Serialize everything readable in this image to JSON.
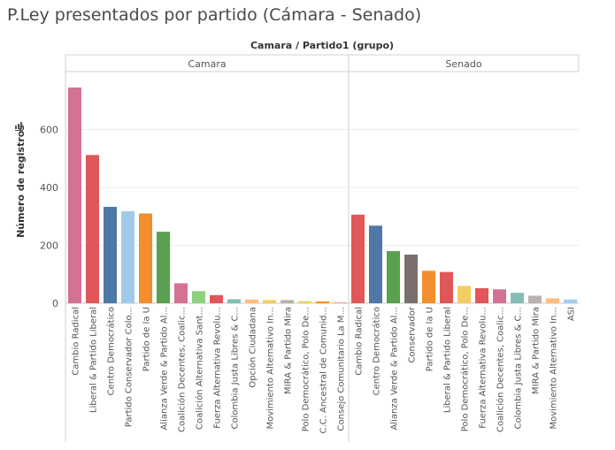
{
  "title": "P.Ley  presentados por partido (Cámara - Senado)",
  "chart_data": {
    "type": "bar",
    "column_header": "Camara / Partido1 (grupo)",
    "ylabel": "Número de registros",
    "ylim": [
      0,
      800
    ],
    "yticks": [
      0,
      200,
      400,
      600
    ],
    "grid": true,
    "panels": [
      {
        "name": "Camara",
        "categories": [
          "Cambio Radical",
          "Liberal & Partido Liberal",
          "Centro Democrático",
          "Partido Conservador Colo...",
          "Partido de la U",
          "Alianza Verde & Partido Al...",
          "Coalición Decentes, Coalic...",
          "Coalición Alternativa Sant...",
          "Fuerza Alternativa Revolu...",
          "Colombia Justa Libres & C...",
          "Opción Ciudadana",
          "Movimiento Alternativo In...",
          "MIRA & Partido Mira",
          "Polo Democrático, Polo De...",
          "C.C. Ancestral de Comunid...",
          "Consejo Comunitario La M..."
        ],
        "values": [
          745,
          512,
          333,
          318,
          310,
          247,
          69,
          42,
          28,
          14,
          13,
          11,
          11,
          7,
          6,
          1
        ],
        "colors": [
          "#D37295",
          "#E15759",
          "#4E79A7",
          "#A0CBE8",
          "#F28E2B",
          "#59A14F",
          "#D37295",
          "#8CD17D",
          "#E15759",
          "#86BCB6",
          "#FFBE7D",
          "#F1CE63",
          "#BAB0AC",
          "#F1CE63",
          "#F28E2B",
          "#FF9D9A"
        ]
      },
      {
        "name": "Senado",
        "categories": [
          "Cambio Radical",
          "Centro Democrático",
          "Alianza Verde & Partido Al...",
          "Conservador",
          "Partido de la U",
          "Liberal & Partido Liberal",
          "Polo Democrático, Polo De...",
          "Fuerza Alternativa Revolu...",
          "Coalición Decentes, Coalic...",
          "Colombia Justa Libres & C...",
          "MIRA & Partido Mira",
          "Movimiento Alternativo In...",
          "ASI"
        ],
        "values": [
          306,
          268,
          180,
          168,
          112,
          108,
          60,
          52,
          48,
          36,
          26,
          17,
          13
        ],
        "colors": [
          "#E15759",
          "#4E79A7",
          "#59A14F",
          "#79706E",
          "#F28E2B",
          "#E15759",
          "#F1CE63",
          "#E15759",
          "#D37295",
          "#86BCB6",
          "#BAB0AC",
          "#FFBE7D",
          "#A0CBE8"
        ]
      }
    ]
  }
}
